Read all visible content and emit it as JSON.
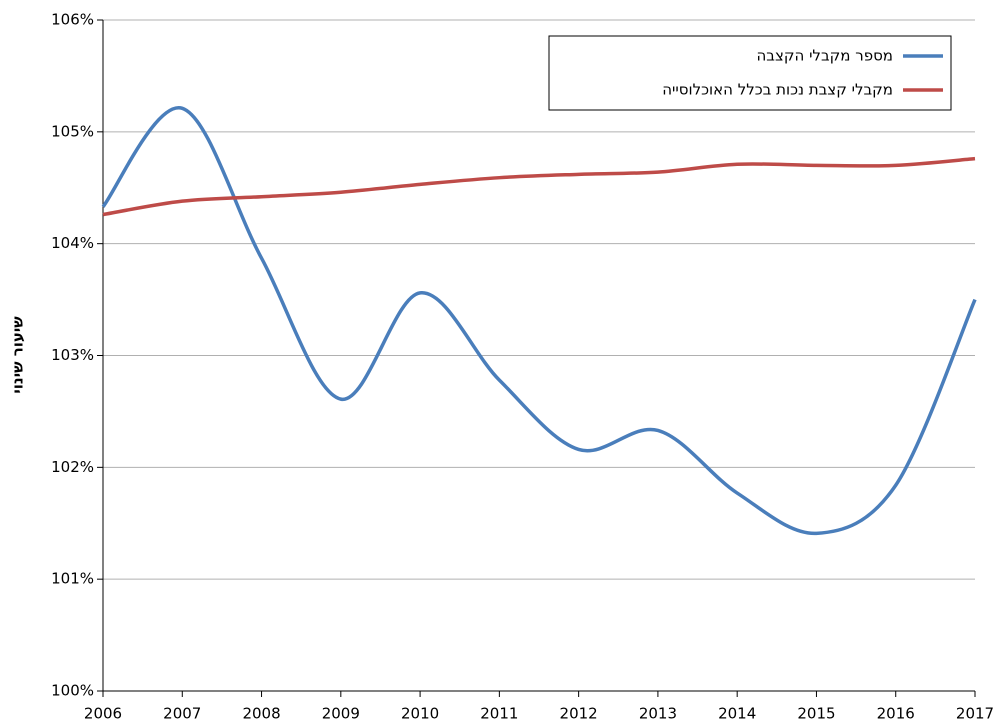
{
  "chart_data": {
    "type": "line",
    "y_label": "שיעור שינוי",
    "x": [
      2006,
      2007,
      2008,
      2009,
      2010,
      2011,
      2012,
      2013,
      2014,
      2015,
      2016,
      2017
    ],
    "xlim": [
      2006,
      2017
    ],
    "xticks": [
      2006,
      2007,
      2008,
      2009,
      2010,
      2011,
      2012,
      2013,
      2014,
      2015,
      2016,
      2017
    ],
    "ylim": [
      100,
      106
    ],
    "yticks": [
      {
        "value": 100,
        "label": "100%"
      },
      {
        "value": 101,
        "label": "101%"
      },
      {
        "value": 102,
        "label": "102%"
      },
      {
        "value": 103,
        "label": "103%"
      },
      {
        "value": 104,
        "label": "104%"
      },
      {
        "value": 105,
        "label": "105%"
      },
      {
        "value": 106,
        "label": "106%"
      }
    ],
    "grid": true,
    "legend": "upper right",
    "series": [
      {
        "name": "מספר מקבלי הקצבה",
        "color": "#4a7ebb",
        "values": [
          104.33,
          105.21,
          103.87,
          102.61,
          103.56,
          102.78,
          102.16,
          102.33,
          101.77,
          101.41,
          101.84,
          103.5
        ]
      },
      {
        "name": "מקבלי קצבת נכות בכלל האוכלוסייה",
        "color": "#be4b48",
        "values": [
          104.26,
          104.38,
          104.42,
          104.46,
          104.53,
          104.59,
          104.62,
          104.64,
          104.71,
          104.7,
          104.7,
          104.76
        ]
      }
    ]
  }
}
